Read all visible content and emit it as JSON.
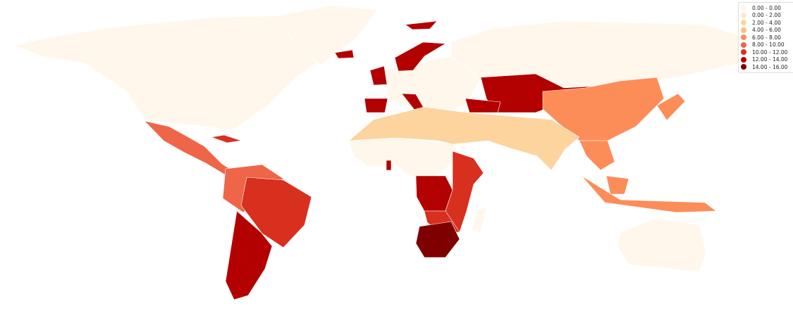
{
  "legend": {
    "placement": "top-right",
    "bins": [
      {
        "label": "0.00 - 0.00",
        "color": "#fff7ec"
      },
      {
        "label": "0.00 - 2.00",
        "color": "#fee8c8"
      },
      {
        "label": "2.00 - 4.00",
        "color": "#fdd49e"
      },
      {
        "label": "4.00 - 6.00",
        "color": "#fdbb84"
      },
      {
        "label": "6.00 - 8.00",
        "color": "#fc8d59"
      },
      {
        "label": "8.00 - 10.00",
        "color": "#ef6548"
      },
      {
        "label": "10.00 - 12.00",
        "color": "#d7301f"
      },
      {
        "label": "12.00 - 14.00",
        "color": "#b30000"
      },
      {
        "label": "14.00 - 16.00",
        "color": "#7f0000"
      }
    ]
  },
  "regions": [
    {
      "name": "north-america",
      "bin": 0
    },
    {
      "name": "greenland",
      "bin": 0
    },
    {
      "name": "mexico-central-america",
      "bin": 5
    },
    {
      "name": "caribbean",
      "bin": 6
    },
    {
      "name": "northern-south-america",
      "bin": 5
    },
    {
      "name": "brazil",
      "bin": 6
    },
    {
      "name": "chile-argentina",
      "bin": 7
    },
    {
      "name": "europe",
      "bin": 0
    },
    {
      "name": "spain",
      "bin": 7
    },
    {
      "name": "uk",
      "bin": 7
    },
    {
      "name": "scandinavia",
      "bin": 7
    },
    {
      "name": "iceland",
      "bin": 7
    },
    {
      "name": "svalbard",
      "bin": 7
    },
    {
      "name": "italy",
      "bin": 7
    },
    {
      "name": "northern-russia",
      "bin": 0
    },
    {
      "name": "southern-russia-kazakhstan",
      "bin": 7
    },
    {
      "name": "turkey-caucasus",
      "bin": 7
    },
    {
      "name": "china",
      "bin": 4
    },
    {
      "name": "japan",
      "bin": 4
    },
    {
      "name": "southeast-asia",
      "bin": 4
    },
    {
      "name": "indonesia-philippines",
      "bin": 4
    },
    {
      "name": "borneo",
      "bin": 4
    },
    {
      "name": "north-africa-middle-east-india",
      "bin": 2
    },
    {
      "name": "west-central-africa",
      "bin": 0
    },
    {
      "name": "congo",
      "bin": 7
    },
    {
      "name": "east-africa",
      "bin": 6
    },
    {
      "name": "angola-zambia",
      "bin": 6
    },
    {
      "name": "southern-africa",
      "bin": 8
    },
    {
      "name": "madagascar",
      "bin": 0
    },
    {
      "name": "australia",
      "bin": 0
    },
    {
      "name": "equatorial-guinea",
      "bin": 7
    }
  ]
}
